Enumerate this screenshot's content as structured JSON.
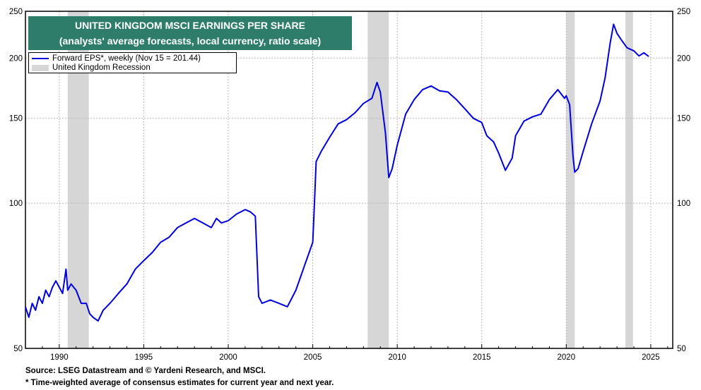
{
  "chart_data": {
    "type": "line",
    "title": "UNITED KINGDOM MSCI EARNINGS PER SHARE",
    "subtitle": "(analysts' average forecasts, local currency, ratio scale)",
    "y_scale": "log",
    "ylim": [
      50,
      250
    ],
    "xlim": [
      1988.0,
      2026.3
    ],
    "y_ticks": [
      50,
      100,
      150,
      200,
      250
    ],
    "x_ticks": [
      1990,
      1995,
      2000,
      2005,
      2010,
      2015,
      2020,
      2025
    ],
    "grid": true,
    "legend_placement": "top-left",
    "series": [
      {
        "name": "Forward EPS*, weekly (Nov 15 = 201.44)",
        "color": "#0000e0",
        "points": [
          [
            1988.0,
            61
          ],
          [
            1988.2,
            58
          ],
          [
            1988.4,
            62
          ],
          [
            1988.6,
            60
          ],
          [
            1988.8,
            64
          ],
          [
            1989.0,
            62
          ],
          [
            1989.2,
            66
          ],
          [
            1989.4,
            64
          ],
          [
            1989.6,
            67
          ],
          [
            1989.8,
            69
          ],
          [
            1990.0,
            67
          ],
          [
            1990.2,
            65
          ],
          [
            1990.4,
            73
          ],
          [
            1990.5,
            66
          ],
          [
            1990.7,
            68
          ],
          [
            1991.0,
            66
          ],
          [
            1991.3,
            62
          ],
          [
            1991.6,
            62
          ],
          [
            1991.8,
            59
          ],
          [
            1992.0,
            58
          ],
          [
            1992.3,
            57
          ],
          [
            1992.6,
            60
          ],
          [
            1993.0,
            62
          ],
          [
            1993.5,
            65
          ],
          [
            1994.0,
            68
          ],
          [
            1994.5,
            73
          ],
          [
            1995.0,
            76
          ],
          [
            1995.5,
            79
          ],
          [
            1996.0,
            83
          ],
          [
            1996.5,
            85
          ],
          [
            1997.0,
            89
          ],
          [
            1997.5,
            91
          ],
          [
            1998.0,
            93
          ],
          [
            1998.5,
            91
          ],
          [
            1999.0,
            89
          ],
          [
            1999.3,
            93
          ],
          [
            1999.6,
            91
          ],
          [
            2000.0,
            92
          ],
          [
            2000.5,
            95
          ],
          [
            2001.0,
            97
          ],
          [
            2001.3,
            96
          ],
          [
            2001.6,
            94
          ],
          [
            2001.8,
            64
          ],
          [
            2002.0,
            62
          ],
          [
            2002.5,
            63
          ],
          [
            2003.0,
            62
          ],
          [
            2003.5,
            61
          ],
          [
            2004.0,
            66
          ],
          [
            2004.5,
            74
          ],
          [
            2005.0,
            83
          ],
          [
            2005.1,
            100
          ],
          [
            2005.2,
            122
          ],
          [
            2005.5,
            128
          ],
          [
            2006.0,
            137
          ],
          [
            2006.5,
            146
          ],
          [
            2007.0,
            149
          ],
          [
            2007.5,
            154
          ],
          [
            2008.0,
            161
          ],
          [
            2008.5,
            165
          ],
          [
            2008.8,
            178
          ],
          [
            2009.0,
            170
          ],
          [
            2009.3,
            140
          ],
          [
            2009.5,
            113
          ],
          [
            2009.7,
            118
          ],
          [
            2010.0,
            132
          ],
          [
            2010.5,
            153
          ],
          [
            2011.0,
            164
          ],
          [
            2011.5,
            172
          ],
          [
            2012.0,
            175
          ],
          [
            2012.5,
            171
          ],
          [
            2013.0,
            170
          ],
          [
            2013.5,
            164
          ],
          [
            2014.0,
            157
          ],
          [
            2014.5,
            150
          ],
          [
            2015.0,
            147
          ],
          [
            2015.3,
            138
          ],
          [
            2015.7,
            134
          ],
          [
            2016.0,
            127
          ],
          [
            2016.4,
            117
          ],
          [
            2016.8,
            124
          ],
          [
            2017.0,
            138
          ],
          [
            2017.5,
            148
          ],
          [
            2018.0,
            151
          ],
          [
            2018.5,
            153
          ],
          [
            2019.0,
            164
          ],
          [
            2019.5,
            172
          ],
          [
            2019.9,
            165
          ],
          [
            2020.0,
            167
          ],
          [
            2020.2,
            160
          ],
          [
            2020.4,
            125
          ],
          [
            2020.5,
            116
          ],
          [
            2020.7,
            118
          ],
          [
            2021.0,
            128
          ],
          [
            2021.5,
            146
          ],
          [
            2022.0,
            163
          ],
          [
            2022.3,
            182
          ],
          [
            2022.6,
            215
          ],
          [
            2022.8,
            235
          ],
          [
            2023.0,
            225
          ],
          [
            2023.3,
            217
          ],
          [
            2023.6,
            210
          ],
          [
            2024.0,
            207
          ],
          [
            2024.3,
            202
          ],
          [
            2024.6,
            205
          ],
          [
            2024.88,
            201.44
          ]
        ]
      },
      {
        "name": "United Kingdom Recession",
        "color": "#d6d6d6",
        "type": "shaded-periods",
        "periods": [
          [
            1990.5,
            1991.75
          ],
          [
            2008.25,
            2009.5
          ],
          [
            2020.0,
            2020.5
          ],
          [
            2023.5,
            2023.95
          ]
        ]
      }
    ]
  },
  "footer": {
    "source": "Source: LSEG Datastream and © Yardeni Research, and MSCI.",
    "note": "* Time-weighted average of consensus estimates for current year and next year."
  }
}
